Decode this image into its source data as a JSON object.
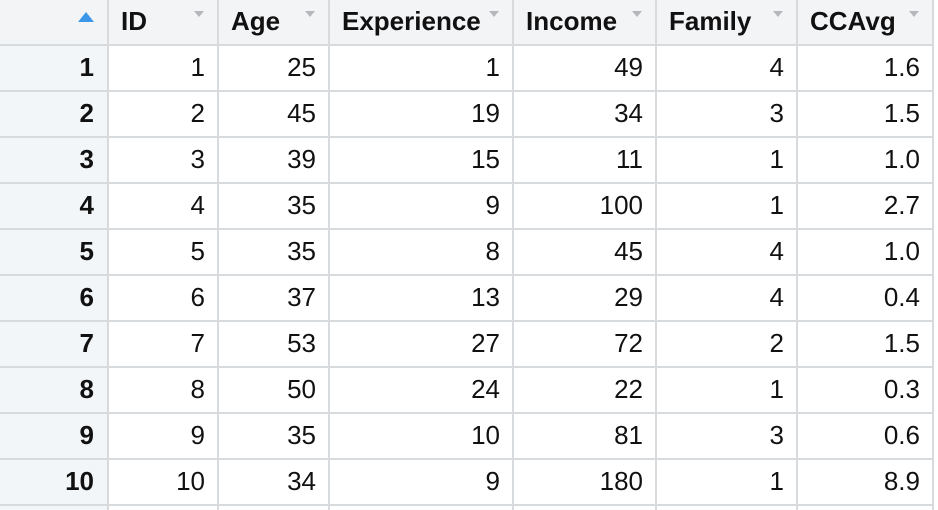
{
  "table": {
    "sort": {
      "column": "row-index",
      "direction": "ascending"
    },
    "index_header": {
      "label": "",
      "sort_icon": "sort-ascending-icon"
    },
    "columns": [
      {
        "label": "ID",
        "sort_icon": "sort-both-icon"
      },
      {
        "label": "Age",
        "sort_icon": "sort-both-icon"
      },
      {
        "label": "Experience",
        "sort_icon": "sort-both-icon"
      },
      {
        "label": "Income",
        "sort_icon": "sort-both-icon"
      },
      {
        "label": "Family",
        "sort_icon": "sort-both-icon"
      },
      {
        "label": "CCAvg",
        "sort_icon": "sort-both-icon"
      }
    ],
    "rows": [
      {
        "index": "1",
        "values": [
          "1",
          "25",
          "1",
          "49",
          "4",
          "1.6"
        ]
      },
      {
        "index": "2",
        "values": [
          "2",
          "45",
          "19",
          "34",
          "3",
          "1.5"
        ]
      },
      {
        "index": "3",
        "values": [
          "3",
          "39",
          "15",
          "11",
          "1",
          "1.0"
        ]
      },
      {
        "index": "4",
        "values": [
          "4",
          "35",
          "9",
          "100",
          "1",
          "2.7"
        ]
      },
      {
        "index": "5",
        "values": [
          "5",
          "35",
          "8",
          "45",
          "4",
          "1.0"
        ]
      },
      {
        "index": "6",
        "values": [
          "6",
          "37",
          "13",
          "29",
          "4",
          "0.4"
        ]
      },
      {
        "index": "7",
        "values": [
          "7",
          "53",
          "27",
          "72",
          "2",
          "1.5"
        ]
      },
      {
        "index": "8",
        "values": [
          "8",
          "50",
          "24",
          "22",
          "1",
          "0.3"
        ]
      },
      {
        "index": "9",
        "values": [
          "9",
          "35",
          "10",
          "81",
          "3",
          "0.6"
        ]
      },
      {
        "index": "10",
        "values": [
          "10",
          "34",
          "9",
          "180",
          "1",
          "8.9"
        ]
      }
    ],
    "partial_row_visible": true
  },
  "colors": {
    "header_bg": "#f3f4f6",
    "index_bg": "#f2f6f9",
    "cell_bg": "#ffffff",
    "border": "#d8dbde",
    "text": "#111111",
    "accent": "#3d97e8",
    "sort_icon": "#b4b8bc"
  }
}
